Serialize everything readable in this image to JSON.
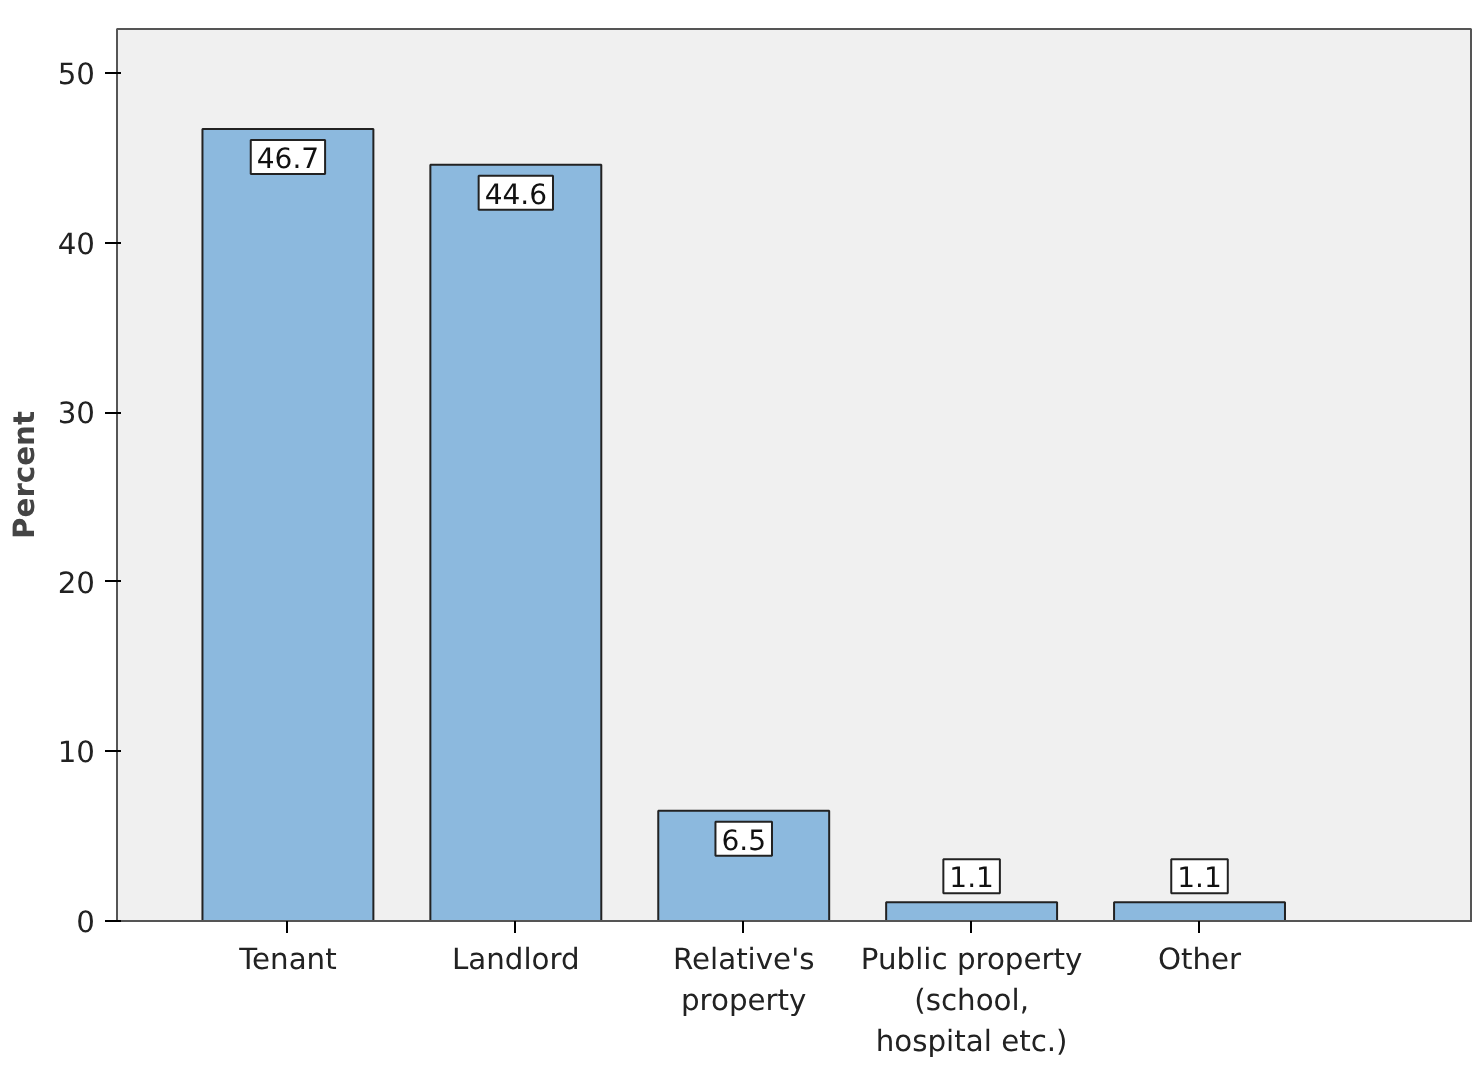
{
  "chart_data": {
    "type": "bar",
    "ylabel": "Percent",
    "categories": [
      "Tenant",
      "Landlord",
      "Relative's\nproperty",
      "Public property\n(school,\nhospital etc.)",
      "Other"
    ],
    "values": [
      46.7,
      44.6,
      6.5,
      1.1,
      1.1
    ],
    "color": "#8cb9de",
    "ylim": [
      0,
      52.6
    ],
    "yticks": [
      0,
      10,
      20,
      30,
      40,
      50
    ],
    "grid": false,
    "data_labels": true
  }
}
